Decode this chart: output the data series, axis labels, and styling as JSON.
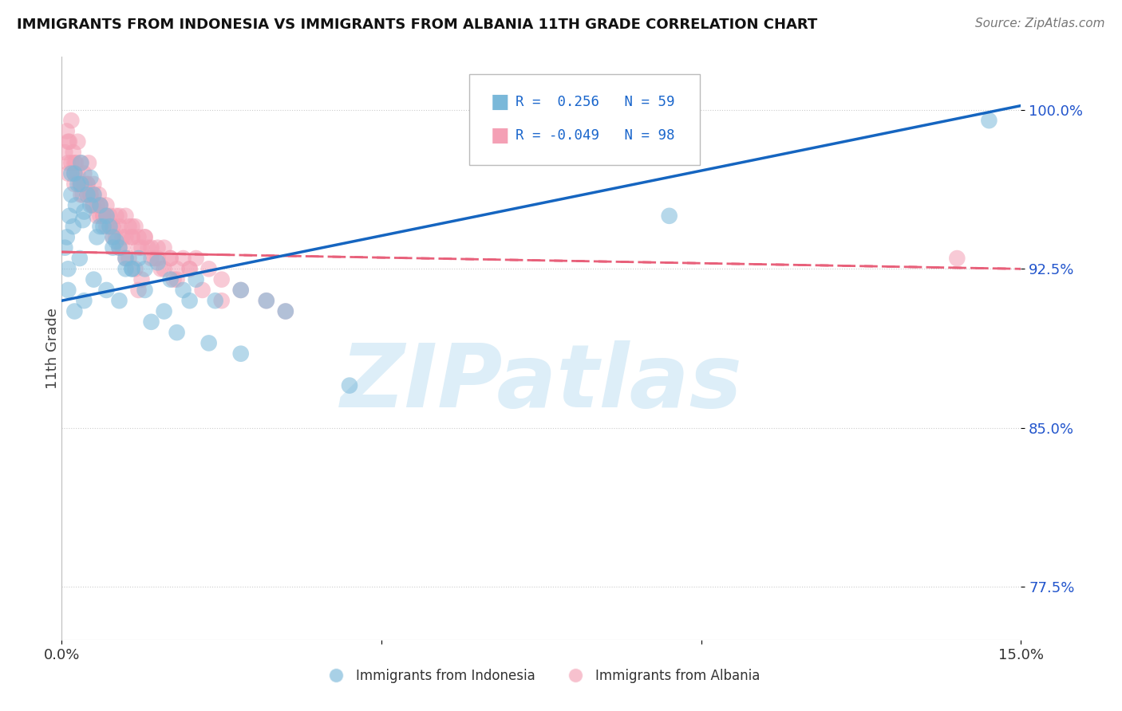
{
  "title": "IMMIGRANTS FROM INDONESIA VS IMMIGRANTS FROM ALBANIA 11TH GRADE CORRELATION CHART",
  "source_text": "Source: ZipAtlas.com",
  "ylabel": "11th Grade",
  "xlim": [
    0.0,
    15.0
  ],
  "ylim": [
    75.0,
    102.5
  ],
  "yticks": [
    77.5,
    85.0,
    92.5,
    100.0
  ],
  "ytick_labels": [
    "77.5%",
    "85.0%",
    "92.5%",
    "100.0%"
  ],
  "xticks": [
    0.0,
    5.0,
    10.0,
    15.0
  ],
  "xtick_labels": [
    "0.0%",
    "",
    "",
    "15.0%"
  ],
  "indonesia_color": "#7ab8d9",
  "albania_color": "#f4a0b5",
  "indonesia_R": 0.256,
  "indonesia_N": 59,
  "albania_R": -0.049,
  "albania_N": 98,
  "indonesia_scatter_x": [
    0.05,
    0.08,
    0.1,
    0.12,
    0.15,
    0.18,
    0.2,
    0.22,
    0.25,
    0.28,
    0.3,
    0.33,
    0.35,
    0.4,
    0.45,
    0.5,
    0.55,
    0.6,
    0.65,
    0.7,
    0.75,
    0.8,
    0.85,
    0.9,
    1.0,
    1.1,
    1.2,
    1.3,
    1.5,
    1.7,
    1.9,
    2.1,
    2.4,
    2.8,
    3.2,
    0.1,
    0.2,
    0.35,
    0.5,
    0.7,
    0.9,
    1.1,
    1.4,
    1.8,
    2.3,
    2.8,
    0.15,
    0.3,
    0.45,
    0.6,
    0.8,
    1.0,
    1.3,
    1.6,
    2.0,
    3.5,
    4.5,
    9.5,
    14.5
  ],
  "indonesia_scatter_y": [
    93.5,
    94.0,
    92.5,
    95.0,
    96.0,
    94.5,
    97.0,
    95.5,
    96.5,
    93.0,
    97.5,
    94.8,
    95.2,
    96.0,
    95.5,
    96.0,
    94.0,
    95.5,
    94.5,
    95.0,
    94.5,
    94.0,
    93.8,
    93.5,
    93.0,
    92.5,
    93.0,
    92.5,
    92.8,
    92.0,
    91.5,
    92.0,
    91.0,
    91.5,
    91.0,
    91.5,
    90.5,
    91.0,
    92.0,
    91.5,
    91.0,
    92.5,
    90.0,
    89.5,
    89.0,
    88.5,
    97.0,
    96.5,
    96.8,
    94.5,
    93.5,
    92.5,
    91.5,
    90.5,
    91.0,
    90.5,
    87.0,
    95.0,
    99.5
  ],
  "albania_scatter_x": [
    0.05,
    0.08,
    0.1,
    0.12,
    0.15,
    0.18,
    0.2,
    0.22,
    0.25,
    0.28,
    0.3,
    0.33,
    0.35,
    0.4,
    0.42,
    0.45,
    0.48,
    0.5,
    0.55,
    0.58,
    0.6,
    0.65,
    0.7,
    0.75,
    0.8,
    0.85,
    0.9,
    0.95,
    1.0,
    1.05,
    1.1,
    1.15,
    1.2,
    1.25,
    1.3,
    1.4,
    1.5,
    1.6,
    1.7,
    1.8,
    1.9,
    2.0,
    2.1,
    2.3,
    2.5,
    2.8,
    3.2,
    0.1,
    0.2,
    0.3,
    0.4,
    0.5,
    0.6,
    0.7,
    0.8,
    0.9,
    1.0,
    1.1,
    1.2,
    1.3,
    1.4,
    1.5,
    1.6,
    1.7,
    1.8,
    2.0,
    2.2,
    2.5,
    0.15,
    0.25,
    0.35,
    0.45,
    0.55,
    0.65,
    0.75,
    0.85,
    0.95,
    1.05,
    1.15,
    1.25,
    1.35,
    1.45,
    1.55,
    1.75,
    0.1,
    0.2,
    0.3,
    0.4,
    0.5,
    0.6,
    0.7,
    0.8,
    0.9,
    1.0,
    1.1,
    1.2,
    3.5,
    14.0
  ],
  "albania_scatter_y": [
    98.0,
    99.0,
    97.5,
    98.5,
    99.5,
    98.0,
    97.0,
    97.5,
    98.5,
    96.5,
    97.5,
    96.0,
    97.0,
    96.5,
    97.5,
    96.0,
    95.5,
    96.5,
    95.0,
    96.0,
    95.5,
    95.0,
    95.5,
    95.0,
    94.5,
    95.0,
    94.5,
    94.0,
    95.0,
    94.5,
    94.0,
    94.5,
    94.0,
    93.5,
    94.0,
    93.5,
    93.0,
    93.5,
    93.0,
    92.5,
    93.0,
    92.5,
    93.0,
    92.5,
    92.0,
    91.5,
    91.0,
    97.0,
    96.5,
    96.0,
    96.5,
    96.0,
    95.5,
    95.0,
    94.5,
    95.0,
    94.0,
    94.5,
    93.5,
    94.0,
    93.0,
    93.5,
    92.5,
    93.0,
    92.0,
    92.5,
    91.5,
    91.0,
    97.5,
    97.0,
    96.5,
    96.0,
    95.5,
    95.0,
    94.5,
    94.0,
    93.5,
    93.0,
    92.5,
    92.0,
    93.5,
    93.0,
    92.5,
    92.0,
    98.5,
    97.5,
    96.5,
    96.0,
    95.5,
    95.0,
    94.5,
    94.0,
    93.5,
    93.0,
    94.0,
    91.5,
    90.5,
    93.0
  ],
  "background_color": "#ffffff",
  "grid_color": "#cccccc",
  "trend_indonesia_color": "#1565c0",
  "trend_albania_color": "#e8607a",
  "watermark_text": "ZIPatlas",
  "watermark_color": "#ddeef8",
  "indonesia_trend_x0": 0.0,
  "indonesia_trend_y0": 91.0,
  "indonesia_trend_x1": 15.0,
  "indonesia_trend_y1": 100.2,
  "albania_trend_x0": 0.0,
  "albania_trend_y0": 93.3,
  "albania_trend_x1": 15.0,
  "albania_trend_y1": 92.5
}
